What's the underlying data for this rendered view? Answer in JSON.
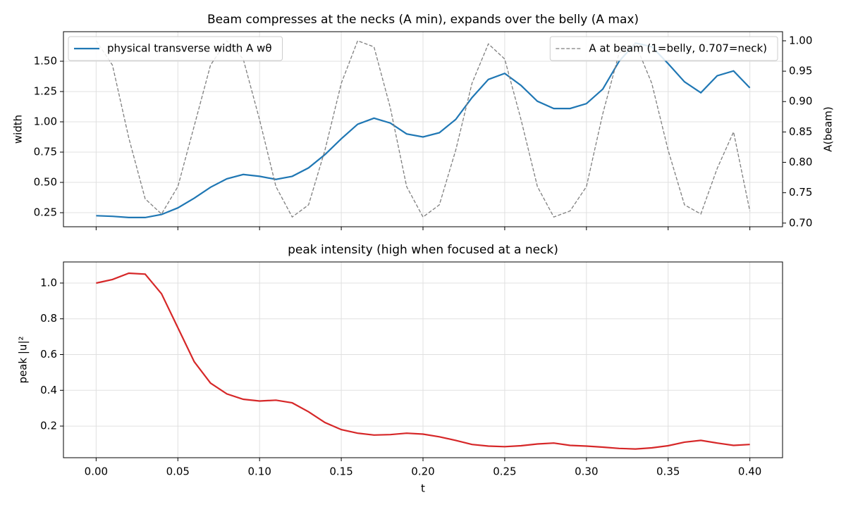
{
  "chart_data": [
    {
      "type": "line",
      "title": "Beam compresses at the necks (A min), expands over the belly (A max)",
      "ylabel": "width",
      "y2label": "A(beam)",
      "x": [
        0,
        0.01,
        0.02,
        0.03,
        0.04,
        0.05,
        0.06,
        0.07,
        0.08,
        0.09,
        0.1,
        0.11,
        0.12,
        0.13,
        0.14,
        0.15,
        0.16,
        0.17,
        0.18,
        0.19,
        0.2,
        0.21,
        0.22,
        0.23,
        0.24,
        0.25,
        0.26,
        0.27,
        0.28,
        0.29,
        0.3,
        0.31,
        0.32,
        0.33,
        0.34,
        0.35,
        0.36,
        0.37,
        0.38,
        0.39,
        0.4
      ],
      "series": [
        {
          "name": "physical transverse width  A wθ",
          "color": "#1f77b4",
          "dashed": false,
          "values": [
            0.225,
            0.22,
            0.21,
            0.21,
            0.235,
            0.29,
            0.37,
            0.46,
            0.53,
            0.565,
            0.55,
            0.525,
            0.55,
            0.62,
            0.73,
            0.86,
            0.98,
            1.03,
            0.99,
            0.9,
            0.875,
            0.91,
            1.02,
            1.2,
            1.35,
            1.4,
            1.3,
            1.17,
            1.11,
            1.11,
            1.15,
            1.27,
            1.5,
            1.65,
            1.62,
            1.48,
            1.33,
            1.24,
            1.38,
            1.42,
            1.28
          ]
        },
        {
          "name": "A at beam (1=belly, 0.707=neck)",
          "color": "#7f7f7f",
          "dashed": true,
          "axis": "y2",
          "values": [
            1.0,
            0.96,
            0.84,
            0.74,
            0.715,
            0.76,
            0.86,
            0.96,
            1.0,
            0.97,
            0.87,
            0.76,
            0.71,
            0.73,
            0.82,
            0.93,
            1.0,
            0.99,
            0.89,
            0.76,
            0.71,
            0.73,
            0.82,
            0.93,
            0.995,
            0.97,
            0.87,
            0.76,
            0.71,
            0.72,
            0.76,
            0.88,
            0.98,
            0.995,
            0.93,
            0.82,
            0.73,
            0.715,
            0.79,
            0.85,
            0.72
          ]
        }
      ],
      "xlim": [
        -0.02,
        0.42
      ],
      "ylim": [
        0.134,
        1.744
      ],
      "yticks": [
        0.25,
        {
          "value": 0.5,
          "label": "0.50"
        },
        0.75,
        {
          "value": 1,
          "label": "1.00"
        },
        1.25,
        {
          "value": 1.5,
          "label": "1.50"
        }
      ],
      "y2lim": [
        0.694,
        1.015
      ],
      "y2ticks": [
        {
          "value": 0.7,
          "label": "0.70"
        },
        0.75,
        {
          "value": 0.8,
          "label": "0.80"
        },
        0.85,
        {
          "value": 0.9,
          "label": "0.90"
        },
        0.95,
        {
          "value": 1,
          "label": "1.00"
        }
      ],
      "grid": true,
      "legend": "upper left",
      "legend2": "upper right"
    },
    {
      "type": "line",
      "title": "peak intensity (high when focused at a neck)",
      "xlabel": "t",
      "ylabel": "peak |u|²",
      "x": [
        0,
        0.01,
        0.02,
        0.03,
        0.04,
        0.05,
        0.06,
        0.07,
        0.08,
        0.09,
        0.1,
        0.11,
        0.12,
        0.13,
        0.14,
        0.15,
        0.16,
        0.17,
        0.18,
        0.19,
        0.2,
        0.21,
        0.22,
        0.23,
        0.24,
        0.25,
        0.26,
        0.27,
        0.28,
        0.29,
        0.3,
        0.31,
        0.32,
        0.33,
        0.34,
        0.35,
        0.36,
        0.37,
        0.38,
        0.39,
        0.4
      ],
      "series": [
        {
          "color": "#d62728",
          "dashed": false,
          "values": [
            1.0,
            1.02,
            1.055,
            1.05,
            0.94,
            0.75,
            0.56,
            0.44,
            0.38,
            0.35,
            0.34,
            0.345,
            0.33,
            0.28,
            0.22,
            0.18,
            0.16,
            0.15,
            0.152,
            0.16,
            0.155,
            0.14,
            0.12,
            0.097,
            0.088,
            0.085,
            0.09,
            0.1,
            0.105,
            0.092,
            0.088,
            0.082,
            0.075,
            0.072,
            0.078,
            0.09,
            0.11,
            0.12,
            0.105,
            0.092,
            0.097
          ]
        }
      ],
      "xlim": [
        -0.02,
        0.42
      ],
      "xticks": [
        {
          "value": 0,
          "label": "0.00"
        },
        0.05,
        {
          "value": 0.1,
          "label": "0.10"
        },
        0.15,
        {
          "value": 0.2,
          "label": "0.20"
        },
        0.25,
        {
          "value": 0.3,
          "label": "0.30"
        },
        0.35,
        {
          "value": 0.4,
          "label": "0.40"
        }
      ],
      "ylim": [
        0.023,
        1.118
      ],
      "yticks": [
        0.2,
        0.4,
        0.6,
        0.8,
        {
          "value": 1,
          "label": "1.0"
        }
      ],
      "grid": true
    }
  ]
}
